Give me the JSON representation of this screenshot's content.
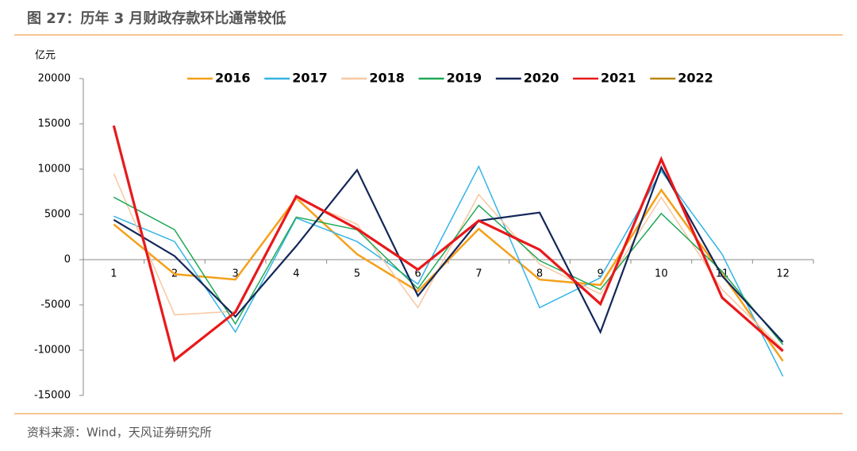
{
  "chart_data": {
    "type": "line",
    "title": "图 27：历年 3 月财政存款环比通常较低",
    "y_label": "亿元",
    "source": "资料来源：Wind，天风证券研究所",
    "categories": [
      "1",
      "2",
      "3",
      "4",
      "5",
      "6",
      "7",
      "8",
      "9",
      "10",
      "11",
      "12"
    ],
    "series": [
      {
        "name": "2016",
        "color": "#f5a01a",
        "values": [
          3900,
          -1600,
          -2200,
          6800,
          600,
          -3500,
          3400,
          -2200,
          -2800,
          7700,
          -1600,
          -11200
        ]
      },
      {
        "name": "2017",
        "color": "#35b4e6",
        "values": [
          4800,
          2000,
          -8000,
          4600,
          2000,
          -2700,
          10300,
          -5300,
          -2000,
          9800,
          600,
          -12900
        ]
      },
      {
        "name": "2018",
        "color": "#f7c7a1",
        "values": [
          9500,
          -6100,
          -5700,
          6800,
          3900,
          -5300,
          7200,
          -500,
          -3800,
          6900,
          -3300,
          -9900
        ]
      },
      {
        "name": "2019",
        "color": "#1fa855",
        "values": [
          6900,
          3300,
          -7100,
          4700,
          3300,
          -3200,
          6000,
          -100,
          -3300,
          5100,
          -1300,
          -9400
        ]
      },
      {
        "name": "2020",
        "color": "#14275a",
        "values": [
          4400,
          400,
          -6300,
          1500,
          9900,
          -4000,
          4300,
          5200,
          -8000,
          10200,
          -1800,
          -9100
        ]
      },
      {
        "name": "2021",
        "color": "#e8191b",
        "values": [
          14800,
          -11100,
          -5800,
          7000,
          3400,
          -1100,
          4300,
          1100,
          -4900,
          11100,
          -4200,
          -10100
        ]
      },
      {
        "name": "2022",
        "color": "#b8860b",
        "values": [
          null,
          null,
          null,
          null,
          null,
          null,
          null,
          null,
          null,
          null,
          null,
          null
        ]
      }
    ],
    "ylim": [
      -15000,
      20000
    ],
    "yticks": [
      -15000,
      -10000,
      -5000,
      0,
      5000,
      10000,
      15000,
      20000
    ],
    "grid": false,
    "legend": "top"
  }
}
